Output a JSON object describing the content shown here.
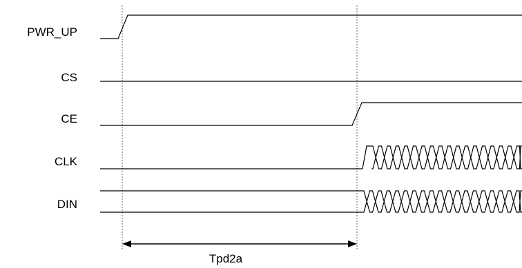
{
  "signals": [
    {
      "id": "pwr_up",
      "label": "PWR_UP"
    },
    {
      "id": "cs",
      "label": "CS"
    },
    {
      "id": "ce",
      "label": "CE"
    },
    {
      "id": "clk",
      "label": "CLK"
    },
    {
      "id": "din",
      "label": "DIN"
    }
  ],
  "timing": {
    "label": "Tpd2a"
  }
}
